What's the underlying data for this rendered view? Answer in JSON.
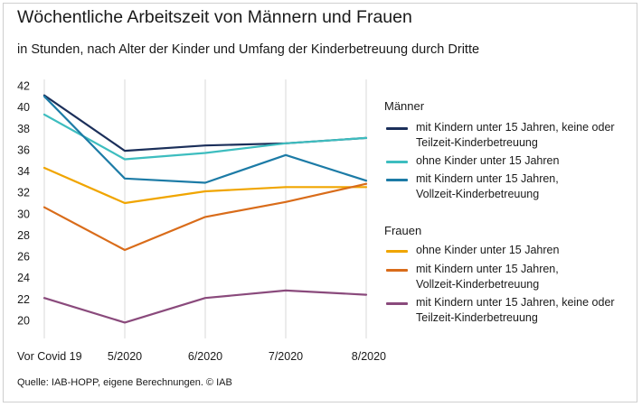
{
  "title": "Wöchentliche Arbeitszeit von Männern und Frauen",
  "subtitle": "in Stunden, nach Alter der Kinder und Umfang der Kinderbetreuung durch Dritte",
  "source": "Quelle: IAB-HOPP, eigene Berechnungen. © IAB",
  "legend": {
    "men_title": "Männer",
    "women_title": "Frauen"
  },
  "chart_data": {
    "type": "line",
    "title": "Wöchentliche Arbeitszeit von Männern und Frauen",
    "subtitle": "in Stunden, nach Alter der Kinder und Umfang der Kinderbetreuung durch Dritte",
    "categories": [
      "Vor Covid 19",
      "5/2020",
      "6/2020",
      "7/2020",
      "8/2020"
    ],
    "ylim": [
      20,
      42
    ],
    "yticks": [
      "42",
      "40",
      "38",
      "36",
      "34",
      "32",
      "30",
      "28",
      "26",
      "24",
      "22",
      "20"
    ],
    "grid": "vertical",
    "legend_position": "right",
    "series": [
      {
        "name": "mit Kindern unter 15 Jahren, keine oder Teilzeit-Kinderbetreuung",
        "group": "Männer",
        "color": "#1b2f5a",
        "values": [
          41.1,
          35.9,
          36.4,
          36.6,
          37.1
        ]
      },
      {
        "name": "ohne Kinder unter 15 Jahren",
        "group": "Männer",
        "color": "#3dbdbf",
        "values": [
          39.3,
          35.1,
          35.7,
          36.6,
          37.1
        ]
      },
      {
        "name": "mit Kindern unter 15 Jahren, Vollzeit-Kinderbetreuung",
        "group": "Männer",
        "color": "#1c7ba6",
        "values": [
          41.0,
          33.3,
          32.9,
          35.5,
          33.1
        ]
      },
      {
        "name": "ohne Kinder unter 15 Jahren",
        "group": "Frauen",
        "color": "#f0a500",
        "values": [
          34.3,
          31.0,
          32.1,
          32.5,
          32.5
        ]
      },
      {
        "name": "mit Kindern unter 15 Jahren, Vollzeit-Kinderbetreuung",
        "group": "Frauen",
        "color": "#d96c1a",
        "values": [
          30.6,
          26.6,
          29.7,
          31.1,
          32.8
        ]
      },
      {
        "name": "mit Kindern unter 15 Jahren, keine oder Teilzeit-Kinderbetreuung",
        "group": "Frauen",
        "color": "#8a4a7c",
        "values": [
          22.1,
          19.8,
          22.1,
          22.8,
          22.4
        ]
      }
    ]
  }
}
